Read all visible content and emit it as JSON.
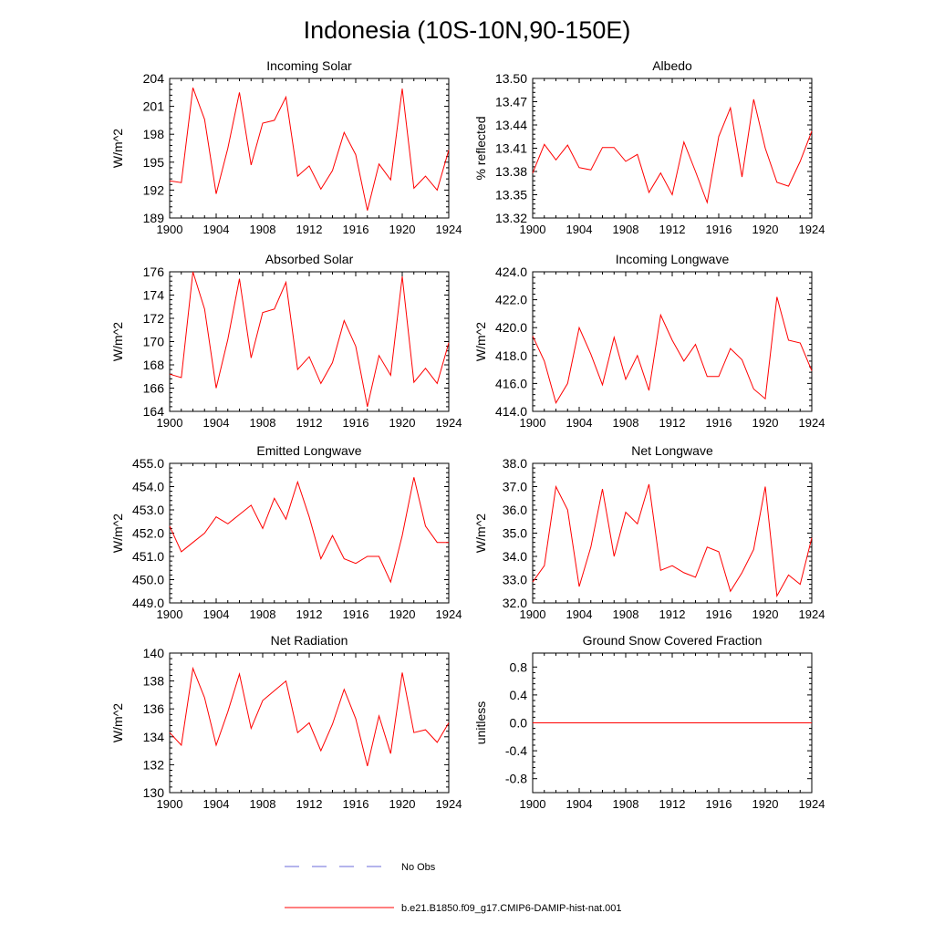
{
  "figure": {
    "title": "Indonesia (10S-10N,90-150E)",
    "legend": [
      {
        "label": "No Obs",
        "color": "#6a6ad8",
        "style": "dashed"
      },
      {
        "label": "b.e21.B1850.f09_g17.CMIP6-DAMIP-hist-nat.001",
        "color": "#ff0000",
        "style": "solid"
      }
    ]
  },
  "chart_data": [
    {
      "type": "line",
      "title": "Incoming Solar",
      "ylabel": "W/m^2",
      "xlim": [
        1900,
        1924
      ],
      "ylim": [
        189,
        204
      ],
      "yticks": [
        "189",
        "192",
        "195",
        "198",
        "201",
        "204"
      ],
      "xticks": [
        "1900",
        "1904",
        "1908",
        "1912",
        "1916",
        "1920",
        "1924"
      ],
      "x": [
        1900,
        1901,
        1902,
        1903,
        1904,
        1905,
        1906,
        1907,
        1908,
        1909,
        1910,
        1911,
        1912,
        1913,
        1914,
        1915,
        1916,
        1917,
        1918,
        1919,
        1920,
        1921,
        1922,
        1923,
        1924
      ],
      "series": [
        {
          "color": "#ff0000",
          "values": [
            193.0,
            192.8,
            203.0,
            199.6,
            191.6,
            196.5,
            202.5,
            194.7,
            199.2,
            199.5,
            202.0,
            193.5,
            194.6,
            192.1,
            194.1,
            198.2,
            195.8,
            189.8,
            194.8,
            193.1,
            202.9,
            192.2,
            193.5,
            192.0,
            196.3
          ]
        }
      ]
    },
    {
      "type": "line",
      "title": "Albedo",
      "ylabel": "% reflected",
      "xlim": [
        1900,
        1924
      ],
      "ylim": [
        13.32,
        13.5
      ],
      "yticks": [
        "13.32",
        "13.35",
        "13.38",
        "13.41",
        "13.44",
        "13.47",
        "13.50"
      ],
      "xticks": [
        "1900",
        "1904",
        "1908",
        "1912",
        "1916",
        "1920",
        "1924"
      ],
      "x": [
        1900,
        1901,
        1902,
        1903,
        1904,
        1905,
        1906,
        1907,
        1908,
        1909,
        1910,
        1911,
        1912,
        1913,
        1914,
        1915,
        1916,
        1917,
        1918,
        1919,
        1920,
        1921,
        1922,
        1923,
        1924
      ],
      "series": [
        {
          "color": "#ff0000",
          "values": [
            13.378,
            13.415,
            13.395,
            13.414,
            13.385,
            13.382,
            13.411,
            13.411,
            13.393,
            13.402,
            13.353,
            13.378,
            13.35,
            13.418,
            13.38,
            13.34,
            13.425,
            13.462,
            13.373,
            13.473,
            13.41,
            13.366,
            13.361,
            13.393,
            13.432
          ]
        }
      ]
    },
    {
      "type": "line",
      "title": "Absorbed Solar",
      "ylabel": "W/m^2",
      "xlim": [
        1900,
        1924
      ],
      "ylim": [
        164,
        176
      ],
      "yticks": [
        "164",
        "166",
        "168",
        "170",
        "172",
        "174",
        "176"
      ],
      "xticks": [
        "1900",
        "1904",
        "1908",
        "1912",
        "1916",
        "1920",
        "1924"
      ],
      "x": [
        1900,
        1901,
        1902,
        1903,
        1904,
        1905,
        1906,
        1907,
        1908,
        1909,
        1910,
        1911,
        1912,
        1913,
        1914,
        1915,
        1916,
        1917,
        1918,
        1919,
        1920,
        1921,
        1922,
        1923,
        1924
      ],
      "series": [
        {
          "color": "#ff0000",
          "values": [
            167.2,
            166.9,
            176.0,
            172.8,
            166.0,
            170.2,
            175.4,
            168.6,
            172.5,
            172.8,
            175.1,
            167.6,
            168.7,
            166.4,
            168.2,
            171.8,
            169.6,
            164.4,
            168.8,
            167.1,
            175.6,
            166.5,
            167.7,
            166.4,
            169.9
          ]
        }
      ]
    },
    {
      "type": "line",
      "title": "Incoming Longwave",
      "ylabel": "W/m^2",
      "xlim": [
        1900,
        1924
      ],
      "ylim": [
        414.0,
        424.0
      ],
      "yticks": [
        "414.0",
        "416.0",
        "418.0",
        "420.0",
        "422.0",
        "424.0"
      ],
      "xticks": [
        "1900",
        "1904",
        "1908",
        "1912",
        "1916",
        "1920",
        "1924"
      ],
      "x": [
        1900,
        1901,
        1902,
        1903,
        1904,
        1905,
        1906,
        1907,
        1908,
        1909,
        1910,
        1911,
        1912,
        1913,
        1914,
        1915,
        1916,
        1917,
        1918,
        1919,
        1920,
        1921,
        1922,
        1923,
        1924
      ],
      "series": [
        {
          "color": "#ff0000",
          "values": [
            419.4,
            417.6,
            414.6,
            416.0,
            420.0,
            418.1,
            415.9,
            419.3,
            416.3,
            418.0,
            415.5,
            420.9,
            419.1,
            417.6,
            418.8,
            416.5,
            416.5,
            418.5,
            417.7,
            415.6,
            414.9,
            422.2,
            419.1,
            418.9,
            416.9
          ]
        }
      ]
    },
    {
      "type": "line",
      "title": "Emitted Longwave",
      "ylabel": "W/m^2",
      "xlim": [
        1900,
        1924
      ],
      "ylim": [
        449.0,
        455.0
      ],
      "yticks": [
        "449.0",
        "450.0",
        "451.0",
        "452.0",
        "453.0",
        "454.0",
        "455.0"
      ],
      "xticks": [
        "1900",
        "1904",
        "1908",
        "1912",
        "1916",
        "1920",
        "1924"
      ],
      "x": [
        1900,
        1901,
        1902,
        1903,
        1904,
        1905,
        1906,
        1907,
        1908,
        1909,
        1910,
        1911,
        1912,
        1913,
        1914,
        1915,
        1916,
        1917,
        1918,
        1919,
        1920,
        1921,
        1922,
        1923,
        1924
      ],
      "series": [
        {
          "color": "#ff0000",
          "values": [
            452.3,
            451.2,
            451.6,
            452.0,
            452.7,
            452.4,
            452.8,
            453.2,
            452.2,
            453.5,
            452.6,
            454.2,
            452.7,
            450.9,
            451.9,
            450.9,
            450.7,
            451.0,
            451.0,
            449.9,
            451.9,
            454.4,
            452.3,
            451.6,
            451.6
          ]
        }
      ]
    },
    {
      "type": "line",
      "title": "Net Longwave",
      "ylabel": "W/m^2",
      "xlim": [
        1900,
        1924
      ],
      "ylim": [
        32.0,
        38.0
      ],
      "yticks": [
        "32.0",
        "33.0",
        "34.0",
        "35.0",
        "36.0",
        "37.0",
        "38.0"
      ],
      "xticks": [
        "1900",
        "1904",
        "1908",
        "1912",
        "1916",
        "1920",
        "1924"
      ],
      "x": [
        1900,
        1901,
        1902,
        1903,
        1904,
        1905,
        1906,
        1907,
        1908,
        1909,
        1910,
        1911,
        1912,
        1913,
        1914,
        1915,
        1916,
        1917,
        1918,
        1919,
        1920,
        1921,
        1922,
        1923,
        1924
      ],
      "series": [
        {
          "color": "#ff0000",
          "values": [
            32.9,
            33.6,
            37.0,
            36.0,
            32.7,
            34.4,
            36.9,
            34.0,
            35.9,
            35.4,
            37.1,
            33.4,
            33.6,
            33.3,
            33.1,
            34.4,
            34.2,
            32.5,
            33.3,
            34.3,
            37.0,
            32.3,
            33.2,
            32.8,
            34.8
          ]
        }
      ]
    },
    {
      "type": "line",
      "title": "Net Radiation",
      "ylabel": "W/m^2",
      "xlim": [
        1900,
        1924
      ],
      "ylim": [
        130,
        140
      ],
      "yticks": [
        "130",
        "132",
        "134",
        "136",
        "138",
        "140"
      ],
      "xticks": [
        "1900",
        "1904",
        "1908",
        "1912",
        "1916",
        "1920",
        "1924"
      ],
      "x": [
        1900,
        1901,
        1902,
        1903,
        1904,
        1905,
        1906,
        1907,
        1908,
        1909,
        1910,
        1911,
        1912,
        1913,
        1914,
        1915,
        1916,
        1917,
        1918,
        1919,
        1920,
        1921,
        1922,
        1923,
        1924
      ],
      "series": [
        {
          "color": "#ff0000",
          "values": [
            134.3,
            133.4,
            138.9,
            136.8,
            133.4,
            135.8,
            138.5,
            134.6,
            136.6,
            137.3,
            138.0,
            134.3,
            135.0,
            133.0,
            134.9,
            137.4,
            135.3,
            131.9,
            135.5,
            132.8,
            138.6,
            134.3,
            134.5,
            133.6,
            135.0
          ]
        }
      ]
    },
    {
      "type": "line",
      "title": "Ground Snow Covered Fraction",
      "ylabel": "unitless",
      "xlim": [
        1900,
        1924
      ],
      "ylim": [
        -1.0,
        1.0
      ],
      "yticks": [
        "-0.8",
        "-0.4",
        "0.0",
        "0.4",
        "0.8"
      ],
      "ytick_values": [
        -0.8,
        -0.4,
        0.0,
        0.4,
        0.8
      ],
      "xticks": [
        "1900",
        "1904",
        "1908",
        "1912",
        "1916",
        "1920",
        "1924"
      ],
      "x": [
        1900,
        1924
      ],
      "series": [
        {
          "color": "#ff0000",
          "values": [
            0.0,
            0.0
          ]
        }
      ]
    }
  ]
}
